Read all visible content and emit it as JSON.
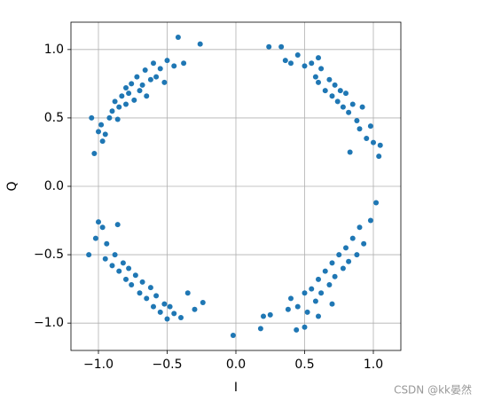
{
  "chart_data": {
    "type": "scatter",
    "xlabel": "I",
    "ylabel": "Q",
    "watermark": "CSDN @kk晏然",
    "color": "#1f77b4",
    "grid": true,
    "xlim": [
      -1.2,
      1.2
    ],
    "ylim": [
      -1.2,
      1.2
    ],
    "xticks": [
      {
        "value": -1,
        "label": "−1.0"
      },
      {
        "value": -0.5,
        "label": "−0.5"
      },
      {
        "value": 0,
        "label": "0.0"
      },
      {
        "value": 0.5,
        "label": "0.5"
      },
      {
        "value": 1,
        "label": "1.0"
      }
    ],
    "yticks": [
      {
        "value": -1,
        "label": "−1.0"
      },
      {
        "value": -0.5,
        "label": "−0.5"
      },
      {
        "value": 0,
        "label": "0.0"
      },
      {
        "value": 0.5,
        "label": "0.5"
      },
      {
        "value": 1,
        "label": "1.0"
      }
    ],
    "x": [
      -1.03,
      -1.0,
      -0.98,
      -0.95,
      -0.92,
      -0.9,
      -0.88,
      -0.85,
      -0.83,
      -0.8,
      -0.8,
      -0.78,
      -0.76,
      -0.74,
      -0.72,
      -0.7,
      -0.68,
      -0.66,
      -0.65,
      -0.62,
      -0.6,
      -0.58,
      -0.55,
      -0.52,
      -0.5,
      -0.45,
      -0.42,
      -0.38,
      -0.26,
      -1.05,
      -0.97,
      -0.86,
      0.24,
      0.33,
      0.36,
      0.45,
      0.5,
      0.55,
      0.58,
      0.6,
      0.62,
      0.65,
      0.68,
      0.7,
      0.72,
      0.74,
      0.76,
      0.78,
      0.8,
      0.82,
      0.85,
      0.88,
      0.9,
      0.92,
      0.95,
      0.98,
      1.0,
      1.05,
      1.04,
      0.83,
      0.6,
      0.4,
      -1.07,
      -1.0,
      -0.97,
      -1.02,
      -0.94,
      -0.95,
      -0.9,
      -0.88,
      -0.85,
      -0.82,
      -0.8,
      -0.78,
      -0.76,
      -0.73,
      -0.7,
      -0.68,
      -0.65,
      -0.62,
      -0.6,
      -0.58,
      -0.55,
      -0.52,
      -0.5,
      -0.48,
      -0.45,
      -0.4,
      -0.35,
      -0.3,
      -0.24,
      -0.86,
      0.18,
      0.2,
      0.25,
      0.38,
      0.4,
      0.45,
      0.5,
      0.52,
      0.55,
      0.58,
      0.6,
      0.62,
      0.65,
      0.68,
      0.7,
      0.72,
      0.75,
      0.78,
      0.8,
      0.82,
      0.85,
      0.88,
      0.9,
      0.93,
      0.98,
      1.02,
      0.5,
      0.44,
      -0.02,
      0.6,
      0.7
    ],
    "values": [
      0.24,
      0.4,
      0.45,
      0.38,
      0.5,
      0.55,
      0.62,
      0.58,
      0.66,
      0.6,
      0.72,
      0.68,
      0.75,
      0.63,
      0.8,
      0.7,
      0.74,
      0.85,
      0.66,
      0.78,
      0.9,
      0.8,
      0.86,
      0.76,
      0.92,
      0.88,
      1.09,
      0.9,
      1.04,
      0.5,
      0.33,
      0.49,
      1.02,
      1.02,
      0.92,
      0.96,
      0.88,
      0.9,
      0.8,
      0.76,
      0.86,
      0.7,
      0.78,
      0.66,
      0.74,
      0.62,
      0.7,
      0.58,
      0.68,
      0.54,
      0.6,
      0.48,
      0.42,
      0.58,
      0.35,
      0.44,
      0.32,
      0.3,
      0.22,
      0.25,
      0.94,
      0.9,
      -0.5,
      -0.26,
      -0.3,
      -0.38,
      -0.42,
      -0.53,
      -0.58,
      -0.5,
      -0.62,
      -0.56,
      -0.68,
      -0.6,
      -0.72,
      -0.65,
      -0.78,
      -0.7,
      -0.82,
      -0.74,
      -0.88,
      -0.8,
      -0.92,
      -0.86,
      -0.97,
      -0.88,
      -0.93,
      -0.96,
      -0.78,
      -0.9,
      -0.85,
      -0.28,
      -1.04,
      -0.95,
      -0.94,
      -0.9,
      -0.82,
      -0.88,
      -0.78,
      -0.92,
      -0.75,
      -0.84,
      -0.68,
      -0.78,
      -0.62,
      -0.72,
      -0.56,
      -0.66,
      -0.5,
      -0.6,
      -0.45,
      -0.55,
      -0.38,
      -0.5,
      -0.3,
      -0.42,
      -0.25,
      -0.12,
      -1.03,
      -1.05,
      -1.09,
      -0.95,
      -0.86
    ]
  }
}
